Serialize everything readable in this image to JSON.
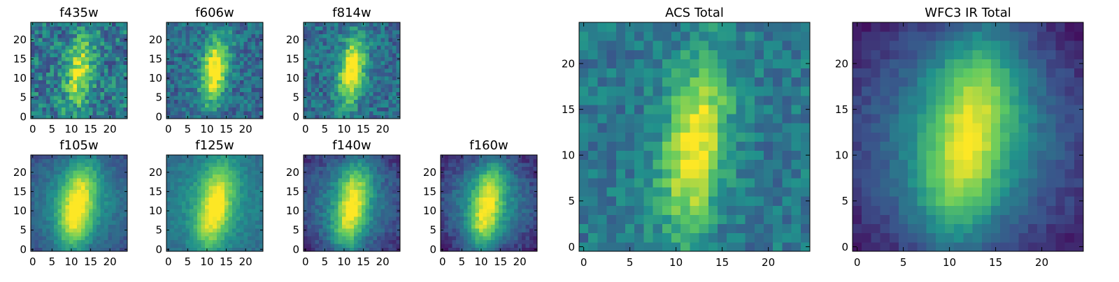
{
  "figure": {
    "background": "#ffffff",
    "colormap": "viridis",
    "colormap_stops": [
      "#440154",
      "#3b528b",
      "#21918c",
      "#5ec962",
      "#fde725"
    ]
  },
  "chart_data": [
    {
      "type": "heatmap",
      "title": "f435w",
      "grid": false,
      "image_size": [
        25,
        25
      ],
      "xlim": [
        -0.5,
        24.5
      ],
      "ylim": [
        -0.5,
        24.5
      ],
      "xticks": [
        0,
        5,
        10,
        15,
        20
      ],
      "yticks": [
        0,
        5,
        10,
        15,
        20
      ],
      "xtick_labels": [
        "0",
        "5",
        "10",
        "15",
        "20"
      ],
      "ytick_labels": [
        "0",
        "5",
        "10",
        "15",
        "20"
      ],
      "source": {
        "cx": 12.0,
        "cy": 11.5,
        "sx": 2.4,
        "sy": 6.5,
        "tilt": 0.12,
        "peak": 0.55,
        "background": 0.4,
        "noise": 0.4,
        "edge_drop": 0.0
      },
      "seed": 11
    },
    {
      "type": "heatmap",
      "title": "f606w",
      "grid": false,
      "image_size": [
        25,
        25
      ],
      "xlim": [
        -0.5,
        24.5
      ],
      "ylim": [
        -0.5,
        24.5
      ],
      "xticks": [
        0,
        5,
        10,
        15,
        20
      ],
      "yticks": [
        0,
        5,
        10,
        15,
        20
      ],
      "xtick_labels": [
        "0",
        "5",
        "10",
        "15",
        "20"
      ],
      "ytick_labels": [
        "0",
        "5",
        "10",
        "15",
        "20"
      ],
      "source": {
        "cx": 12.0,
        "cy": 12.0,
        "sx": 2.3,
        "sy": 6.0,
        "tilt": 0.13,
        "peak": 0.75,
        "background": 0.35,
        "noise": 0.3,
        "edge_drop": 0.0
      },
      "seed": 22
    },
    {
      "type": "heatmap",
      "title": "f814w",
      "grid": false,
      "image_size": [
        25,
        25
      ],
      "xlim": [
        -0.5,
        24.5
      ],
      "ylim": [
        -0.5,
        24.5
      ],
      "xticks": [
        0,
        5,
        10,
        15,
        20
      ],
      "yticks": [
        0,
        5,
        10,
        15,
        20
      ],
      "xtick_labels": [
        "0",
        "5",
        "10",
        "15",
        "20"
      ],
      "ytick_labels": [
        "0",
        "5",
        "10",
        "15",
        "20"
      ],
      "source": {
        "cx": 12.0,
        "cy": 12.0,
        "sx": 2.3,
        "sy": 6.0,
        "tilt": 0.13,
        "peak": 0.75,
        "background": 0.35,
        "noise": 0.3,
        "edge_drop": 0.0
      },
      "seed": 33
    },
    {
      "type": "heatmap",
      "title": "f105w",
      "grid": false,
      "image_size": [
        25,
        25
      ],
      "xlim": [
        -0.5,
        24.5
      ],
      "ylim": [
        -0.5,
        24.5
      ],
      "xticks": [
        0,
        5,
        10,
        15,
        20
      ],
      "yticks": [
        0,
        5,
        10,
        15,
        20
      ],
      "xtick_labels": [
        "0",
        "5",
        "10",
        "15",
        "20"
      ],
      "ytick_labels": [
        "0",
        "5",
        "10",
        "15",
        "20"
      ],
      "source": {
        "cx": 11.5,
        "cy": 11.0,
        "sx": 3.0,
        "sy": 7.5,
        "tilt": 0.15,
        "peak": 0.65,
        "background": 0.45,
        "noise": 0.12,
        "edge_drop": 0.25
      },
      "seed": 44
    },
    {
      "type": "heatmap",
      "title": "f125w",
      "grid": false,
      "image_size": [
        25,
        25
      ],
      "xlim": [
        -0.5,
        24.5
      ],
      "ylim": [
        -0.5,
        24.5
      ],
      "xticks": [
        0,
        5,
        10,
        15,
        20
      ],
      "yticks": [
        0,
        5,
        10,
        15,
        20
      ],
      "xtick_labels": [
        "0",
        "5",
        "10",
        "15",
        "20"
      ],
      "ytick_labels": [
        "0",
        "5",
        "10",
        "15",
        "20"
      ],
      "source": {
        "cx": 12.0,
        "cy": 11.0,
        "sx": 3.0,
        "sy": 7.5,
        "tilt": 0.15,
        "peak": 0.6,
        "background": 0.48,
        "noise": 0.12,
        "edge_drop": 0.15
      },
      "seed": 55
    },
    {
      "type": "heatmap",
      "title": "f140w",
      "grid": false,
      "image_size": [
        25,
        25
      ],
      "xlim": [
        -0.5,
        24.5
      ],
      "ylim": [
        -0.5,
        24.5
      ],
      "xticks": [
        0,
        5,
        10,
        15,
        20
      ],
      "yticks": [
        0,
        5,
        10,
        15,
        20
      ],
      "xtick_labels": [
        "0",
        "5",
        "10",
        "15",
        "20"
      ],
      "ytick_labels": [
        "0",
        "5",
        "10",
        "15",
        "20"
      ],
      "source": {
        "cx": 12.0,
        "cy": 11.0,
        "sx": 2.8,
        "sy": 7.5,
        "tilt": 0.15,
        "peak": 0.65,
        "background": 0.4,
        "noise": 0.15,
        "edge_drop": 0.3
      },
      "seed": 66
    },
    {
      "type": "heatmap",
      "title": "f160w",
      "grid": false,
      "image_size": [
        25,
        25
      ],
      "xlim": [
        -0.5,
        24.5
      ],
      "ylim": [
        -0.5,
        24.5
      ],
      "xticks": [
        0,
        5,
        10,
        15,
        20
      ],
      "yticks": [
        0,
        5,
        10,
        15,
        20
      ],
      "xtick_labels": [
        "0",
        "5",
        "10",
        "15",
        "20"
      ],
      "ytick_labels": [
        "0",
        "5",
        "10",
        "15",
        "20"
      ],
      "source": {
        "cx": 11.5,
        "cy": 11.0,
        "sx": 2.8,
        "sy": 7.5,
        "tilt": 0.15,
        "peak": 0.65,
        "background": 0.4,
        "noise": 0.15,
        "edge_drop": 0.35
      },
      "seed": 77
    },
    {
      "type": "heatmap",
      "title": "ACS Total",
      "grid": false,
      "image_size": [
        25,
        25
      ],
      "xlim": [
        -0.5,
        24.5
      ],
      "ylim": [
        -0.5,
        24.5
      ],
      "xticks": [
        0,
        5,
        10,
        15,
        20
      ],
      "yticks": [
        0,
        5,
        10,
        15,
        20
      ],
      "xtick_labels": [
        "0",
        "5",
        "10",
        "15",
        "20"
      ],
      "ytick_labels": [
        "0",
        "5",
        "10",
        "15",
        "20"
      ],
      "source": {
        "cx": 12.0,
        "cy": 11.0,
        "sx": 2.3,
        "sy": 6.5,
        "tilt": 0.13,
        "peak": 0.65,
        "background": 0.4,
        "noise": 0.25,
        "edge_drop": 0.0
      },
      "seed": 88
    },
    {
      "type": "heatmap",
      "title": "WFC3 IR Total",
      "grid": false,
      "image_size": [
        25,
        25
      ],
      "xlim": [
        -0.5,
        24.5
      ],
      "ylim": [
        -0.5,
        24.5
      ],
      "xticks": [
        0,
        5,
        10,
        15,
        20
      ],
      "yticks": [
        0,
        5,
        10,
        15,
        20
      ],
      "xtick_labels": [
        "0",
        "5",
        "10",
        "15",
        "20"
      ],
      "ytick_labels": [
        "0",
        "5",
        "10",
        "15",
        "20"
      ],
      "source": {
        "cx": 12.0,
        "cy": 12.0,
        "sx": 3.2,
        "sy": 7.5,
        "tilt": 0.15,
        "peak": 0.62,
        "background": 0.38,
        "noise": 0.1,
        "edge_drop": 0.35
      },
      "seed": 99
    }
  ]
}
